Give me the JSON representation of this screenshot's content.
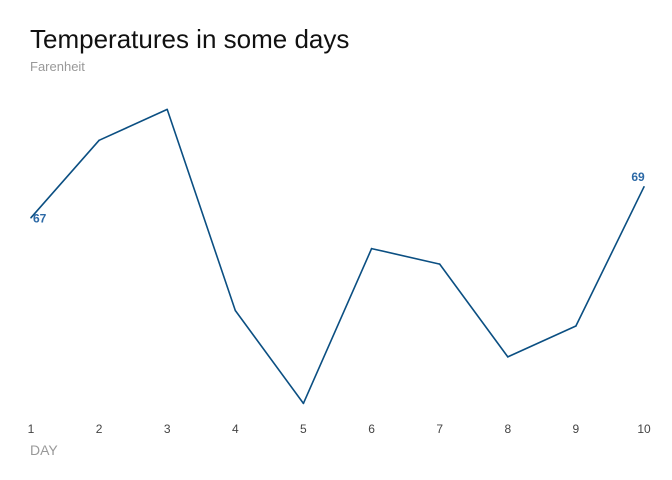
{
  "chart_data": {
    "type": "line",
    "title": "Temperatures in some days",
    "subtitle": "Farenheit",
    "xlabel": "DAY",
    "ylabel": "",
    "x": [
      1,
      2,
      3,
      4,
      5,
      6,
      7,
      8,
      9,
      10
    ],
    "x_tick_labels": [
      "1",
      "2",
      "3",
      "4",
      "5",
      "6",
      "7",
      "8",
      "9",
      "10"
    ],
    "series": [
      {
        "values": [
          67,
          72,
          74,
          61,
          55,
          65,
          64,
          58,
          60,
          69
        ]
      }
    ],
    "data_labels": [
      {
        "index": 0,
        "text": "67"
      },
      {
        "index": 9,
        "text": "69"
      }
    ],
    "ylim": [
      54.7,
      75.9
    ],
    "grid": false,
    "legend": "none",
    "colors": {
      "line": "#0B4F82",
      "label": "#2C69A6"
    }
  }
}
